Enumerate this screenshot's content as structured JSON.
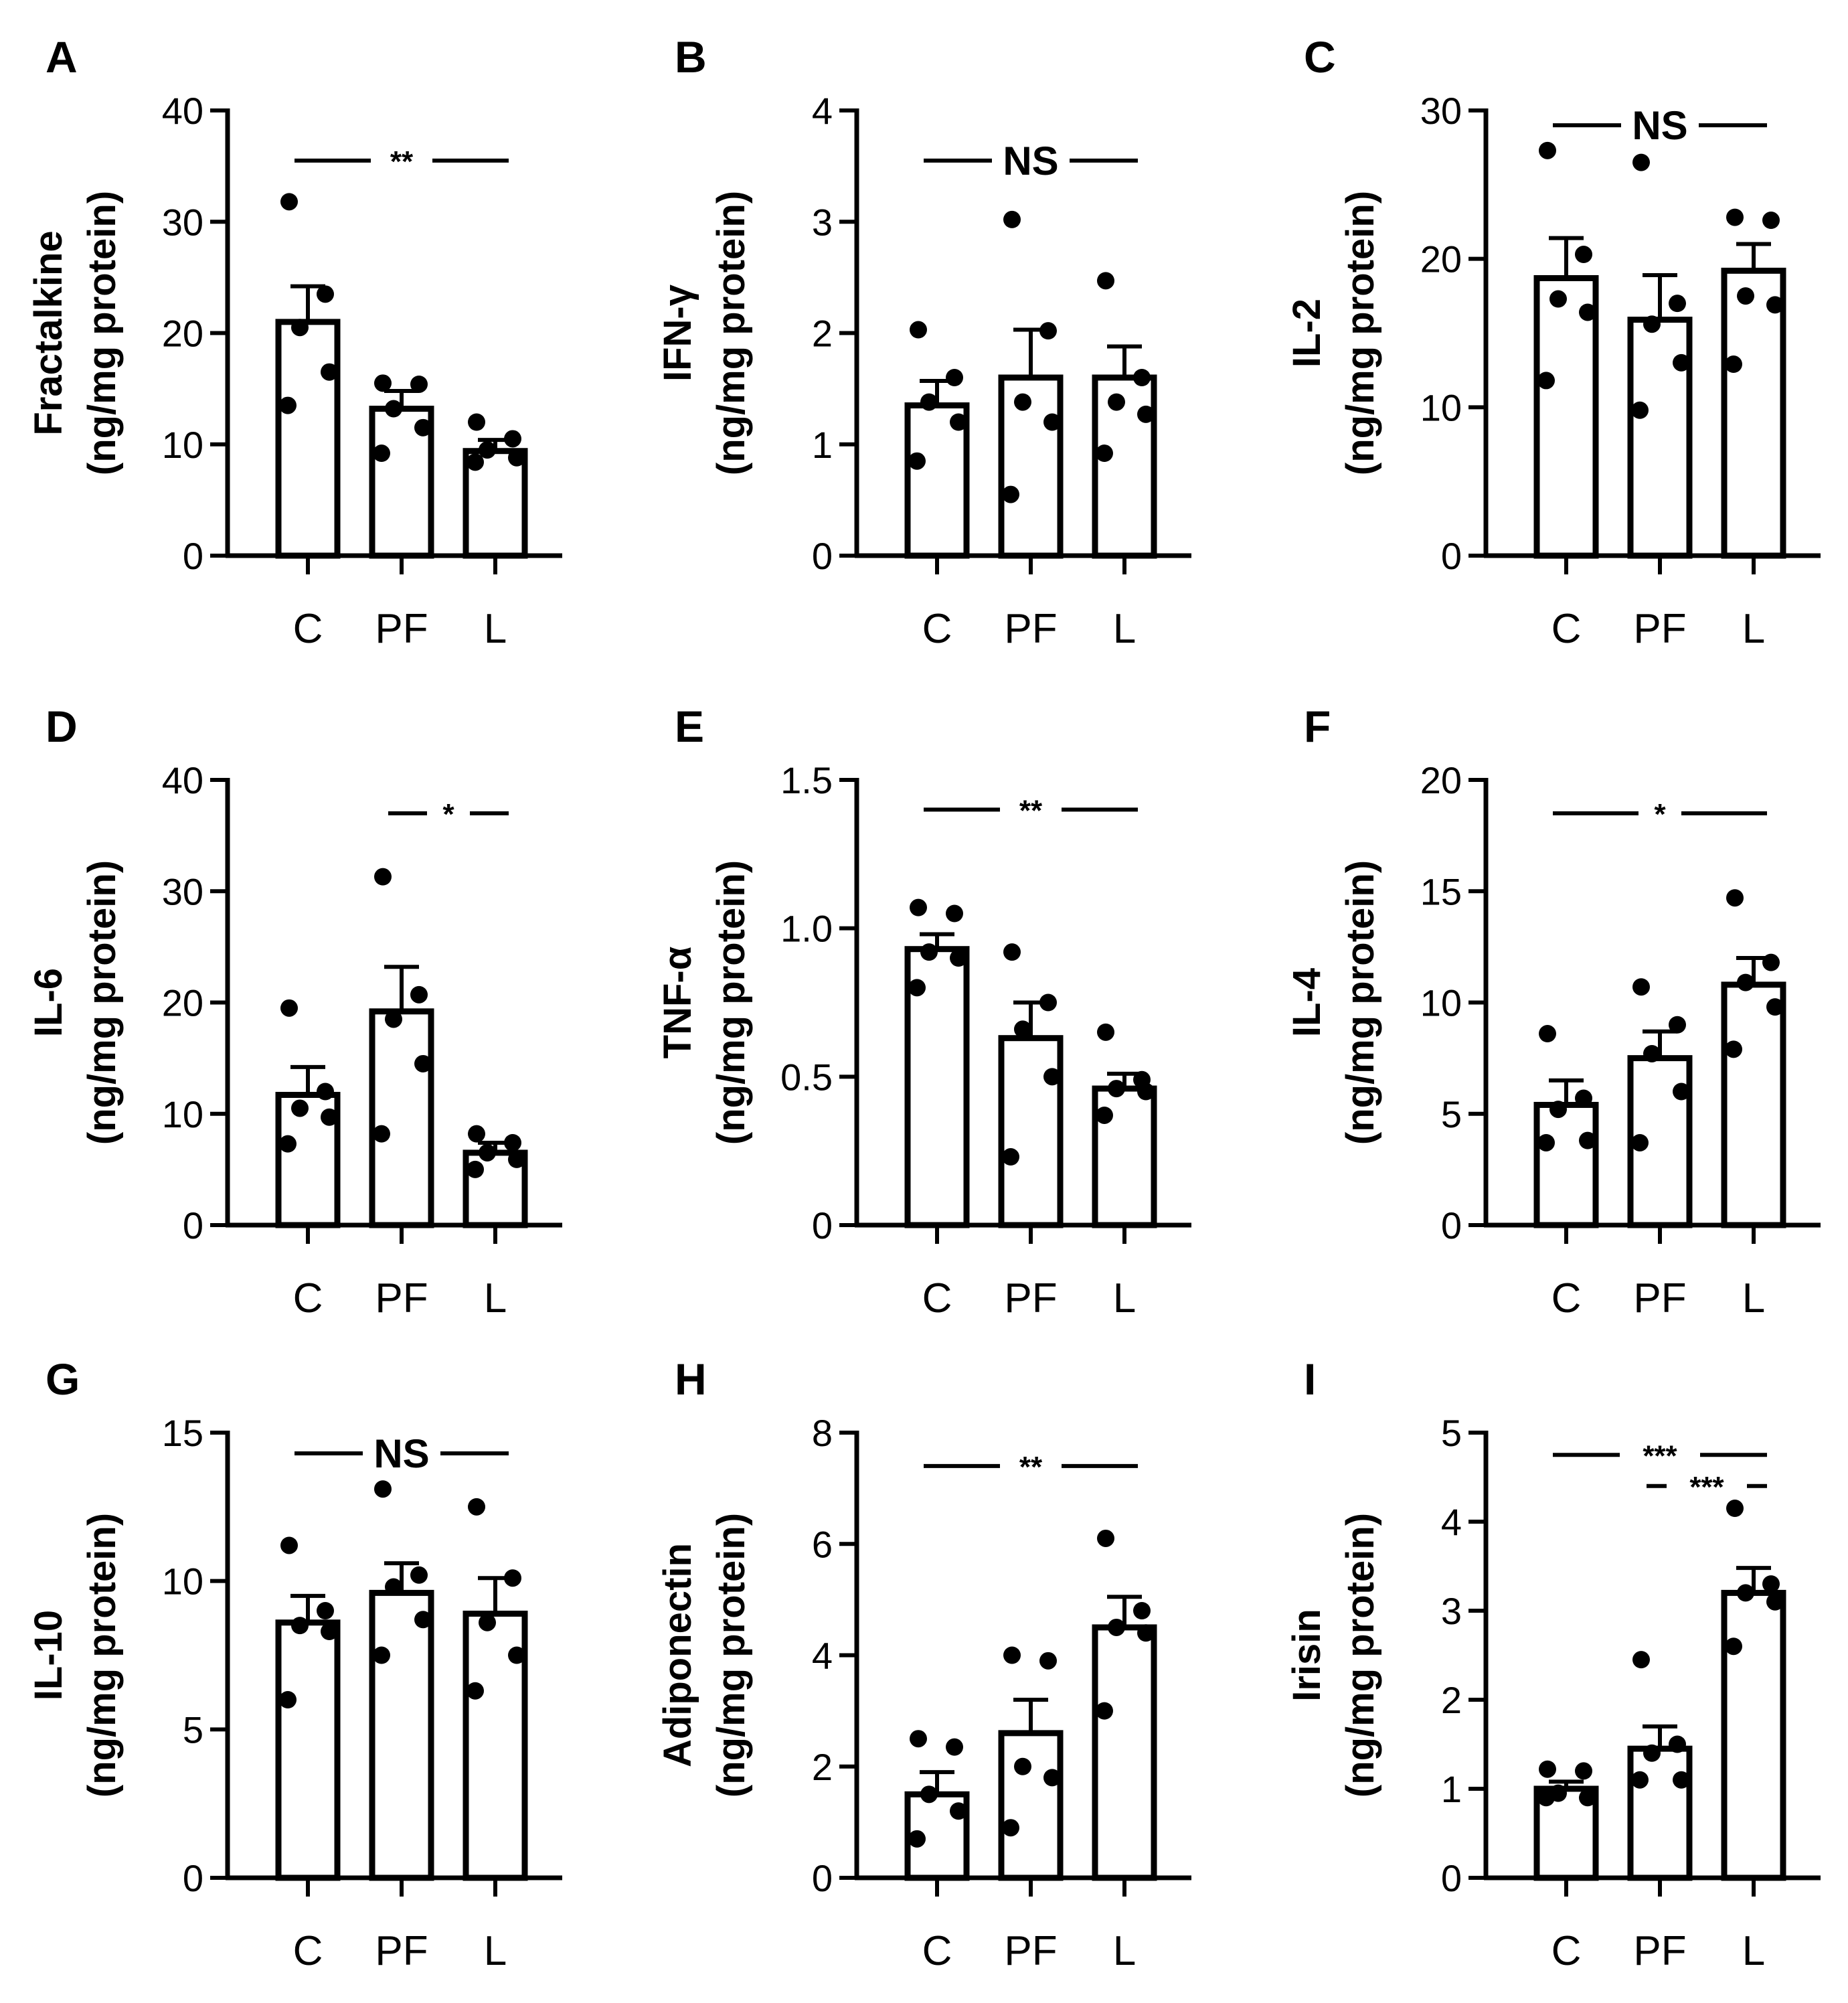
{
  "figure": {
    "categories": [
      "C",
      "PF",
      "L"
    ]
  },
  "chart_data": [
    {
      "panel": "A",
      "type": "bar",
      "ylabel": "Fractalkine",
      "ylabel2": "(ng/mg protein)",
      "ylim": [
        0,
        40
      ],
      "yticks": [
        "0",
        "10",
        "20",
        "30",
        "40"
      ],
      "categories": [
        "C",
        "PF",
        "L"
      ],
      "means": [
        21,
        13.2,
        9.4
      ],
      "sem": [
        3.2,
        1.6,
        1.0
      ],
      "points": [
        [
          31.8,
          23.5,
          20.5,
          16.5,
          13.5
        ],
        [
          15.5,
          15.4,
          13.2,
          11.5,
          9.2
        ],
        [
          12.0,
          10.5,
          9.5,
          8.8,
          8.4
        ]
      ],
      "significance": [
        {
          "from": 0,
          "to": 2,
          "label": "**",
          "y": 35.5
        }
      ]
    },
    {
      "panel": "B",
      "type": "bar",
      "ylabel": "IFN-γ",
      "ylabel2": "(ng/mg protein)",
      "ylim": [
        0,
        4
      ],
      "yticks": [
        "0",
        "1",
        "2",
        "3",
        "4"
      ],
      "categories": [
        "C",
        "PF",
        "L"
      ],
      "means": [
        1.35,
        1.6,
        1.6
      ],
      "sem": [
        0.22,
        0.43,
        0.28
      ],
      "points": [
        [
          2.03,
          1.6,
          1.38,
          1.2,
          0.85
        ],
        [
          3.02,
          2.02,
          1.38,
          1.2,
          0.55
        ],
        [
          2.47,
          1.6,
          1.38,
          1.27,
          0.92
        ]
      ],
      "significance": [
        {
          "from": 0,
          "to": 2,
          "label": "NS",
          "y": 3.55
        }
      ]
    },
    {
      "panel": "C",
      "type": "bar",
      "ylabel": "IL-2",
      "ylabel2": "(ng/mg protein)",
      "ylim": [
        0,
        30
      ],
      "yticks": [
        "0",
        "10",
        "20",
        "30"
      ],
      "categories": [
        "C",
        "PF",
        "L"
      ],
      "means": [
        18.7,
        15.9,
        19.2
      ],
      "sem": [
        2.7,
        3.0,
        1.8
      ],
      "points": [
        [
          27.3,
          20.3,
          17.3,
          16.4,
          11.8
        ],
        [
          26.5,
          17.0,
          15.6,
          13.0,
          9.8
        ],
        [
          22.8,
          22.6,
          17.5,
          16.9,
          12.9
        ]
      ],
      "significance": [
        {
          "from": 0,
          "to": 2,
          "label": "NS",
          "y": 29.0
        }
      ]
    },
    {
      "panel": "D",
      "type": "bar",
      "ylabel": "IL-6",
      "ylabel2": "(ng/mg protein)",
      "ylim": [
        0,
        40
      ],
      "yticks": [
        "0",
        "10",
        "20",
        "30",
        "40"
      ],
      "categories": [
        "C",
        "PF",
        "L"
      ],
      "means": [
        11.7,
        19.2,
        6.5
      ],
      "sem": [
        2.5,
        4.0,
        0.9
      ],
      "points": [
        [
          19.5,
          12.0,
          10.5,
          9.7,
          7.3
        ],
        [
          31.3,
          20.7,
          18.5,
          14.5,
          8.2
        ],
        [
          8.2,
          7.4,
          6.5,
          5.9,
          5.0
        ]
      ],
      "significance": [
        {
          "from": 1,
          "to": 2,
          "label": "*",
          "y": 37.0
        }
      ]
    },
    {
      "panel": "E",
      "type": "bar",
      "ylabel": "TNF-α",
      "ylabel2": "(ng/mg protein)",
      "ylim": [
        0,
        1.5
      ],
      "yticks": [
        "0",
        "0.5",
        "1.0",
        "1.5"
      ],
      "categories": [
        "C",
        "PF",
        "L"
      ],
      "means": [
        0.93,
        0.63,
        0.46
      ],
      "sem": [
        0.05,
        0.12,
        0.05
      ],
      "points": [
        [
          1.07,
          1.05,
          0.92,
          0.9,
          0.8
        ],
        [
          0.92,
          0.75,
          0.66,
          0.5,
          0.23
        ],
        [
          0.65,
          0.49,
          0.46,
          0.45,
          0.37
        ]
      ],
      "significance": [
        {
          "from": 0,
          "to": 2,
          "label": "**",
          "y": 1.4
        }
      ]
    },
    {
      "panel": "F",
      "type": "bar",
      "ylabel": "IL-4",
      "ylabel2": "(ng/mg protein)",
      "ylim": [
        0,
        20
      ],
      "yticks": [
        "0",
        "5",
        "10",
        "15",
        "20"
      ],
      "categories": [
        "C",
        "PF",
        "L"
      ],
      "means": [
        5.4,
        7.5,
        10.8
      ],
      "sem": [
        1.1,
        1.2,
        1.2
      ],
      "points": [
        [
          8.6,
          5.7,
          5.2,
          3.8,
          3.7
        ],
        [
          10.7,
          9.0,
          7.7,
          6.0,
          3.7
        ],
        [
          14.7,
          11.8,
          10.9,
          9.8,
          7.9
        ]
      ],
      "significance": [
        {
          "from": 0,
          "to": 2,
          "label": "*",
          "y": 18.5
        }
      ]
    },
    {
      "panel": "G",
      "type": "bar",
      "ylabel": "IL-10",
      "ylabel2": "(ng/mg protein)",
      "ylim": [
        0,
        15
      ],
      "yticks": [
        "0",
        "5",
        "10",
        "15"
      ],
      "categories": [
        "C",
        "PF",
        "L"
      ],
      "means": [
        8.6,
        9.6,
        8.9
      ],
      "sem": [
        0.9,
        1.0,
        1.2
      ],
      "points": [
        [
          11.2,
          9.0,
          8.5,
          8.3,
          6.0
        ],
        [
          13.1,
          10.2,
          9.8,
          8.7,
          7.5
        ],
        [
          12.5,
          10.1,
          8.6,
          7.5,
          6.3
        ]
      ],
      "significance": [
        {
          "from": 0,
          "to": 2,
          "label": "NS",
          "y": 14.3
        }
      ]
    },
    {
      "panel": "H",
      "type": "bar",
      "ylabel": "Adiponectin",
      "ylabel2": "(ng/mg protein)",
      "ylim": [
        0,
        8
      ],
      "yticks": [
        "0",
        "2",
        "4",
        "6",
        "8"
      ],
      "categories": [
        "C",
        "PF",
        "L"
      ],
      "means": [
        1.5,
        2.6,
        4.5
      ],
      "sem": [
        0.4,
        0.6,
        0.55
      ],
      "points": [
        [
          2.5,
          2.35,
          1.5,
          1.2,
          0.7
        ],
        [
          4.0,
          3.9,
          2.0,
          1.8,
          0.9
        ],
        [
          6.1,
          4.8,
          4.5,
          4.4,
          3.0
        ]
      ],
      "significance": [
        {
          "from": 0,
          "to": 2,
          "label": "**",
          "y": 7.4
        }
      ]
    },
    {
      "panel": "I",
      "type": "bar",
      "ylabel": "Irisin",
      "ylabel2": "(ng/mg protein)",
      "ylim": [
        0,
        5
      ],
      "yticks": [
        "0",
        "1",
        "2",
        "3",
        "4",
        "5"
      ],
      "categories": [
        "C",
        "PF",
        "L"
      ],
      "means": [
        1.0,
        1.45,
        3.2
      ],
      "sem": [
        0.08,
        0.25,
        0.28
      ],
      "points": [
        [
          1.22,
          1.2,
          0.95,
          0.9,
          0.9
        ],
        [
          2.45,
          1.5,
          1.4,
          1.1,
          1.1
        ],
        [
          4.15,
          3.3,
          3.2,
          3.1,
          2.6
        ]
      ],
      "significance": [
        {
          "from": 0,
          "to": 2,
          "label": "***",
          "y": 4.75
        },
        {
          "from": 1,
          "to": 2,
          "label": "***",
          "y": 4.4
        }
      ]
    }
  ]
}
